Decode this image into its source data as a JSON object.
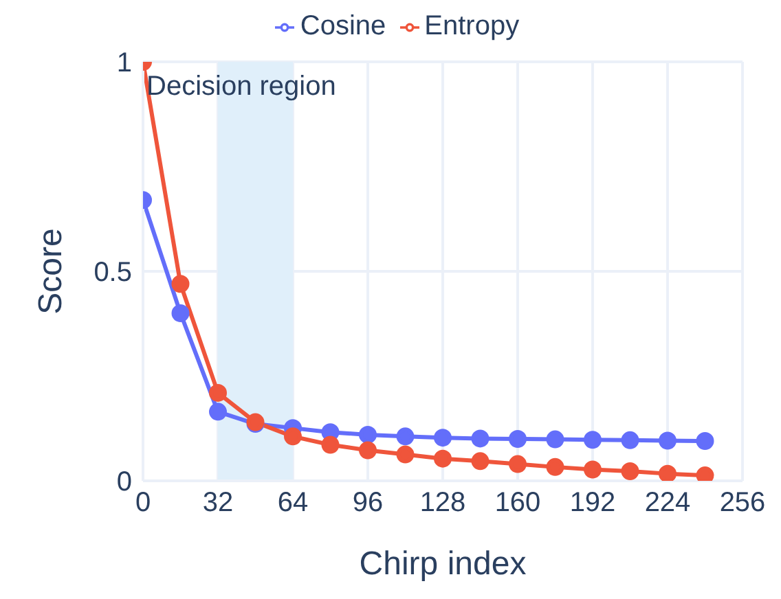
{
  "chart_data": {
    "type": "line",
    "xlabel": "Chirp index",
    "ylabel": "Score",
    "x": [
      0,
      16,
      32,
      48,
      64,
      80,
      96,
      112,
      128,
      144,
      160,
      176,
      192,
      208,
      224,
      240
    ],
    "series": [
      {
        "name": "Cosine",
        "color": "#636efa",
        "values": [
          0.67,
          0.4,
          0.165,
          0.136,
          0.126,
          0.116,
          0.11,
          0.106,
          0.103,
          0.101,
          0.1,
          0.099,
          0.098,
          0.097,
          0.096,
          0.095
        ]
      },
      {
        "name": "Entropy",
        "color": "#ef553b",
        "values": [
          1.0,
          0.47,
          0.21,
          0.14,
          0.106,
          0.086,
          0.073,
          0.063,
          0.053,
          0.047,
          0.04,
          0.033,
          0.027,
          0.023,
          0.017,
          0.013
        ]
      }
    ],
    "xlim": [
      0,
      256
    ],
    "xticks": [
      0,
      32,
      64,
      96,
      128,
      160,
      192,
      224,
      256
    ],
    "ylim": [
      0,
      1
    ],
    "yticks": [
      0,
      0.5,
      1
    ],
    "bands": [
      {
        "axis": "x",
        "from": 32,
        "to": 64,
        "label": "Decision region",
        "color": "#e0effa"
      }
    ],
    "grid": true,
    "legend": "top",
    "marker": "circle",
    "line_style": "solid"
  }
}
